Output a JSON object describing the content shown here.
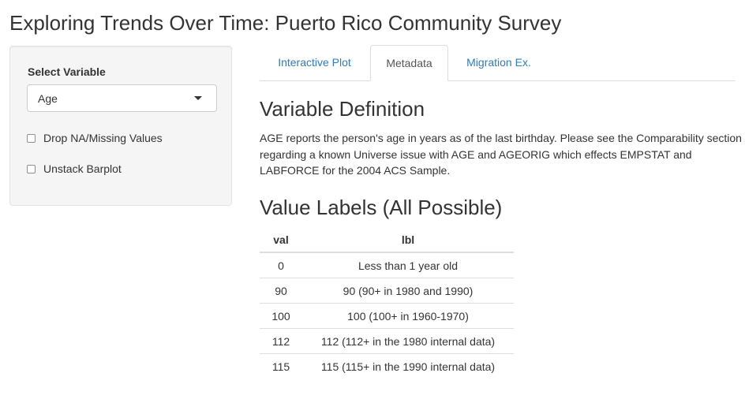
{
  "page_title": "Exploring Trends Over Time: Puerto Rico Community Survey",
  "sidebar": {
    "select_label": "Select Variable",
    "select_value": "Age",
    "checkboxes": [
      {
        "label": "Drop NA/Missing Values",
        "checked": false
      },
      {
        "label": "Unstack Barplot",
        "checked": false
      }
    ]
  },
  "tabs": [
    {
      "label": "Interactive Plot",
      "active": false
    },
    {
      "label": "Metadata",
      "active": true
    },
    {
      "label": "Migration Ex.",
      "active": false
    }
  ],
  "content": {
    "definition_heading": "Variable Definition",
    "definition_text": "AGE reports the person's age in years as of the last birthday. Please see the Comparability section regarding a known Universe issue with AGE and AGEORIG which effects EMPSTAT and LABFORCE for the 2004 ACS Sample.",
    "labels_heading": "Value Labels (All Possible)",
    "table": {
      "headers": [
        "val",
        "lbl"
      ],
      "rows": [
        [
          "0",
          "Less than 1 year old"
        ],
        [
          "90",
          "90 (90+ in 1980 and 1990)"
        ],
        [
          "100",
          "100 (100+ in 1960-1970)"
        ],
        [
          "112",
          "112 (112+ in the 1980 internal data)"
        ],
        [
          "115",
          "115 (115+ in the 1990 internal data)"
        ]
      ]
    }
  },
  "colors": {
    "link": "#337ab7",
    "active_tab_text": "#555555",
    "sidebar_bg": "#f5f5f5"
  }
}
